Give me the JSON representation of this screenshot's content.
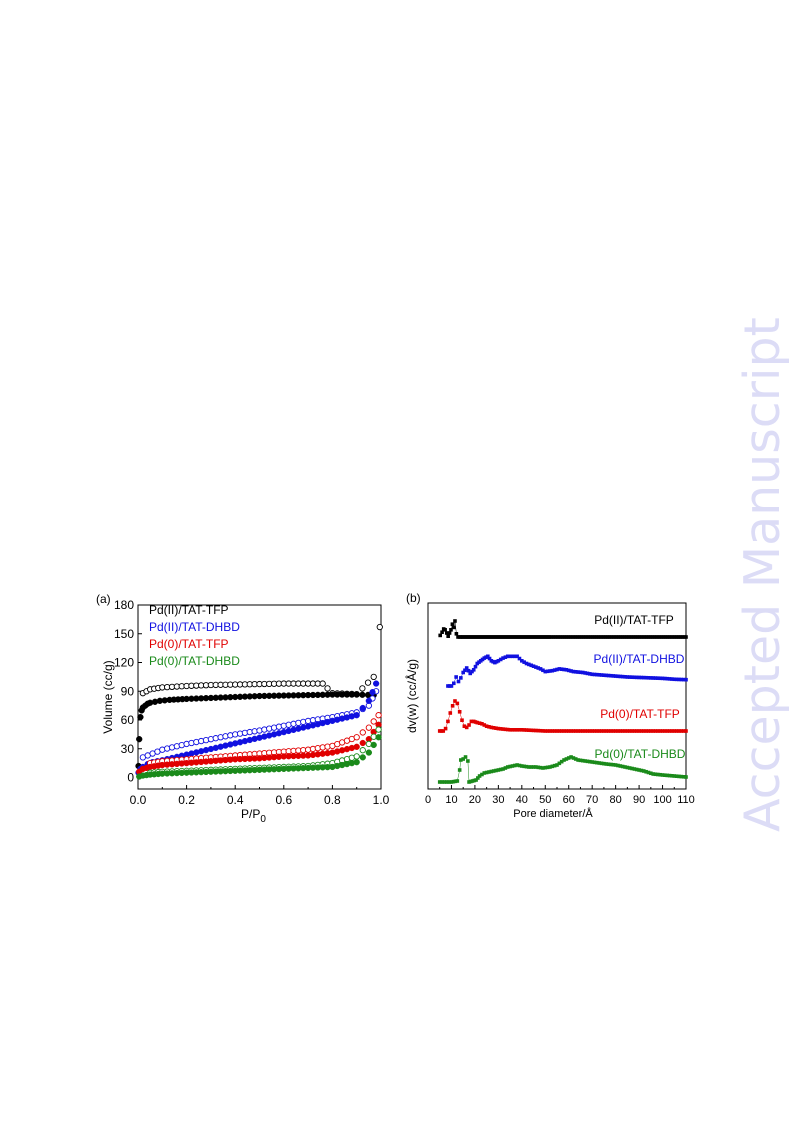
{
  "watermark": "Accepted Manuscript",
  "chart_data": [
    {
      "type": "scatter",
      "panel_label": "(a)",
      "xlabel": "P/P",
      "xlabel_sub": "0",
      "ylabel": "Volume (cc/g)",
      "xlim": [
        0.0,
        1.0
      ],
      "ylim": [
        -12,
        180
      ],
      "xticks": [
        "0.0",
        "0.2",
        "0.4",
        "0.6",
        "0.8",
        "1.0"
      ],
      "yticks": [
        "0",
        "30",
        "60",
        "90",
        "120",
        "150",
        "180"
      ],
      "legend": [
        "Pd(II)/TAT-TFP",
        "Pd(II)/TAT-DHBD",
        "Pd(0)/TAT-TFP",
        "Pd(0)/TAT-DHBD"
      ],
      "series": [
        {
          "name": "Pd(II)/TAT-TFP",
          "color": "#000000",
          "adsorption": [
            [
              0.002,
              12
            ],
            [
              0.005,
              40
            ],
            [
              0.01,
              63
            ],
            [
              0.015,
              70
            ],
            [
              0.02,
              73
            ],
            [
              0.03,
              75
            ],
            [
              0.04,
              77
            ],
            [
              0.05,
              78
            ],
            [
              0.07,
              79
            ],
            [
              0.09,
              80
            ],
            [
              0.13,
              81
            ],
            [
              0.2,
              82
            ],
            [
              0.3,
              83
            ],
            [
              0.4,
              84
            ],
            [
              0.5,
              85
            ],
            [
              0.6,
              85.5
            ],
            [
              0.7,
              86
            ],
            [
              0.8,
              86.5
            ],
            [
              0.9,
              86.5
            ],
            [
              0.97,
              86
            ]
          ],
          "desorption": [
            [
              0.02,
              88
            ],
            [
              0.05,
              92
            ],
            [
              0.1,
              94
            ],
            [
              0.2,
              95.5
            ],
            [
              0.3,
              96.5
            ],
            [
              0.4,
              97
            ],
            [
              0.5,
              97.5
            ],
            [
              0.6,
              98
            ],
            [
              0.7,
              98
            ],
            [
              0.76,
              98
            ],
            [
              0.8,
              88
            ],
            [
              0.9,
              87
            ],
            [
              0.97,
              105
            ],
            [
              0.995,
              157
            ]
          ]
        },
        {
          "name": "Pd(II)/TAT-DHBD",
          "color": "#1010e0",
          "adsorption": [
            [
              0.002,
              5
            ],
            [
              0.01,
              9
            ],
            [
              0.02,
              11
            ],
            [
              0.04,
              14
            ],
            [
              0.06,
              16
            ],
            [
              0.08,
              17
            ],
            [
              0.1,
              18
            ],
            [
              0.9,
              65
            ],
            [
              0.95,
              80
            ],
            [
              0.98,
              98
            ]
          ],
          "desorption": [
            [
              0.02,
              21
            ],
            [
              0.1,
              29
            ],
            [
              0.2,
              35
            ],
            [
              0.3,
              40
            ],
            [
              0.4,
              45
            ],
            [
              0.5,
              49
            ],
            [
              0.6,
              54
            ],
            [
              0.7,
              59
            ],
            [
              0.8,
              63
            ],
            [
              0.9,
              68
            ],
            [
              0.95,
              75
            ],
            [
              0.98,
              90
            ]
          ]
        },
        {
          "name": "Pd(0)/TAT-TFP",
          "color": "#e00000",
          "adsorption": [
            [
              0.005,
              6
            ],
            [
              0.02,
              9
            ],
            [
              0.05,
              11
            ],
            [
              0.1,
              13
            ],
            [
              0.2,
              15
            ],
            [
              0.3,
              17
            ],
            [
              0.4,
              19
            ],
            [
              0.5,
              20
            ],
            [
              0.6,
              22
            ],
            [
              0.7,
              23
            ],
            [
              0.8,
              26
            ],
            [
              0.9,
              32
            ],
            [
              0.95,
              40
            ],
            [
              0.99,
              55
            ]
          ],
          "desorption": [
            [
              0.05,
              15
            ],
            [
              0.1,
              17
            ],
            [
              0.2,
              19
            ],
            [
              0.3,
              21
            ],
            [
              0.4,
              23
            ],
            [
              0.5,
              25
            ],
            [
              0.6,
              27
            ],
            [
              0.7,
              29
            ],
            [
              0.8,
              33
            ],
            [
              0.9,
              42
            ],
            [
              0.95,
              52
            ],
            [
              0.99,
              65
            ]
          ]
        },
        {
          "name": "Pd(0)/TAT-DHBD",
          "color": "#1a8a1a",
          "adsorption": [
            [
              0.005,
              1
            ],
            [
              0.02,
              2
            ],
            [
              0.05,
              3
            ],
            [
              0.1,
              4
            ],
            [
              0.2,
              5
            ],
            [
              0.3,
              6
            ],
            [
              0.4,
              7
            ],
            [
              0.5,
              8
            ],
            [
              0.6,
              9
            ],
            [
              0.7,
              10
            ],
            [
              0.8,
              11
            ],
            [
              0.9,
              16
            ],
            [
              0.95,
              26
            ],
            [
              0.99,
              42
            ]
          ],
          "desorption": [
            [
              0.05,
              5
            ],
            [
              0.1,
              6
            ],
            [
              0.2,
              7
            ],
            [
              0.3,
              8
            ],
            [
              0.4,
              9
            ],
            [
              0.5,
              10
            ],
            [
              0.6,
              11
            ],
            [
              0.7,
              12
            ],
            [
              0.8,
              15
            ],
            [
              0.9,
              22
            ],
            [
              0.95,
              35
            ],
            [
              0.99,
              50
            ]
          ]
        }
      ]
    },
    {
      "type": "scatter",
      "panel_label": "(b)",
      "xlabel": "Pore diameter/Å",
      "ylabel": "dv(w) (cc/Å/g)",
      "xlim": [
        0,
        110
      ],
      "yticks_shown": false,
      "xticks": [
        "0",
        "10",
        "20",
        "30",
        "40",
        "50",
        "60",
        "70",
        "80",
        "90",
        "100",
        "110"
      ],
      "labels": [
        "Pd(II)/TAT-TFP",
        "Pd(II)/TAT-DHBD",
        "Pd(0)/TAT-TFP",
        "Pd(0)/TAT-DHBD"
      ],
      "series": [
        {
          "name": "Pd(II)/TAT-TFP",
          "color": "#000000",
          "points": [
            [
              5.2,
              0.2
            ],
            [
              6,
              0.6
            ],
            [
              6.7,
              1.0
            ],
            [
              7.3,
              0.9
            ],
            [
              8,
              0.5
            ],
            [
              8.6,
              0.1
            ],
            [
              9.8,
              0.9
            ],
            [
              10.4,
              1.6
            ],
            [
              11,
              1.2
            ],
            [
              11.5,
              2.0
            ],
            [
              12.1,
              0.4
            ],
            [
              12.8,
              0
            ],
            [
              15,
              0
            ],
            [
              17.5,
              0
            ],
            [
              18.6,
              0.15
            ],
            [
              20,
              0
            ],
            [
              110,
              0
            ]
          ]
        },
        {
          "name": "Pd(II)/TAT-DHBD",
          "color": "#1010e0",
          "points": [
            [
              8.5,
              0
            ],
            [
              10,
              0
            ],
            [
              11,
              0.3
            ],
            [
              12,
              1.0
            ],
            [
              13,
              0.5
            ],
            [
              14,
              0.9
            ],
            [
              15,
              1.5
            ],
            [
              16.5,
              2.0
            ],
            [
              18,
              1.4
            ],
            [
              19.5,
              1.8
            ],
            [
              21,
              2.5
            ],
            [
              22.5,
              2.8
            ],
            [
              24,
              3.1
            ],
            [
              25.5,
              3.3
            ],
            [
              27,
              2.8
            ],
            [
              28.5,
              2.6
            ],
            [
              30,
              2.8
            ],
            [
              32,
              3.1
            ],
            [
              34,
              3.3
            ],
            [
              36,
              3.3
            ],
            [
              38,
              3.3
            ],
            [
              40,
              2.8
            ],
            [
              42,
              2.5
            ],
            [
              44,
              2.3
            ],
            [
              46,
              2.1
            ],
            [
              48,
              1.9
            ],
            [
              50,
              1.6
            ],
            [
              53,
              1.7
            ],
            [
              56,
              1.9
            ],
            [
              59,
              1.8
            ],
            [
              62,
              1.6
            ],
            [
              66,
              1.5
            ],
            [
              70,
              1.3
            ],
            [
              75,
              1.2
            ],
            [
              80,
              1.1
            ],
            [
              85,
              1.0
            ],
            [
              90,
              0.95
            ],
            [
              95,
              0.9
            ],
            [
              100,
              0.85
            ],
            [
              105,
              0.75
            ],
            [
              110,
              0.7
            ]
          ]
        },
        {
          "name": "Pd(0)/TAT-TFP",
          "color": "#e00000",
          "points": [
            [
              5,
              0
            ],
            [
              6.5,
              0
            ],
            [
              7.5,
              0.2
            ],
            [
              8.5,
              0.8
            ],
            [
              9.5,
              1.5
            ],
            [
              10.5,
              2.1
            ],
            [
              11.5,
              2.5
            ],
            [
              12.5,
              2.3
            ],
            [
              13.5,
              1.6
            ],
            [
              14.5,
              0.9
            ],
            [
              15.5,
              0.4
            ],
            [
              16.5,
              0.3
            ],
            [
              17.5,
              0.5
            ],
            [
              18.5,
              0.8
            ],
            [
              19.5,
              0.8
            ],
            [
              21,
              0.7
            ],
            [
              23,
              0.6
            ],
            [
              25,
              0.4
            ],
            [
              27,
              0.3
            ],
            [
              30,
              0.2
            ],
            [
              35,
              0.1
            ],
            [
              40,
              0.1
            ],
            [
              45,
              0.05
            ],
            [
              50,
              0
            ],
            [
              110,
              0
            ]
          ]
        },
        {
          "name": "Pd(0)/TAT-DHBD",
          "color": "#1a8a1a",
          "points": [
            [
              5,
              0
            ],
            [
              10,
              0
            ],
            [
              12.5,
              0.1
            ],
            [
              13.5,
              1.2
            ],
            [
              14,
              2.2
            ],
            [
              15,
              2.3
            ],
            [
              16,
              2.5
            ],
            [
              17,
              2.1
            ],
            [
              17.5,
              0
            ],
            [
              19,
              0.1
            ],
            [
              20.5,
              0.2
            ],
            [
              22,
              0.6
            ],
            [
              24,
              0.9
            ],
            [
              26,
              1.0
            ],
            [
              28,
              1.1
            ],
            [
              30,
              1.2
            ],
            [
              32,
              1.3
            ],
            [
              34,
              1.5
            ],
            [
              36,
              1.6
            ],
            [
              38,
              1.7
            ],
            [
              40,
              1.6
            ],
            [
              43,
              1.5
            ],
            [
              46,
              1.5
            ],
            [
              49,
              1.4
            ],
            [
              52,
              1.5
            ],
            [
              55,
              1.7
            ],
            [
              58,
              2.2
            ],
            [
              61,
              2.5
            ],
            [
              64,
              2.2
            ],
            [
              67,
              2.1
            ],
            [
              70,
              2.0
            ],
            [
              73,
              1.9
            ],
            [
              76,
              1.8
            ],
            [
              80,
              1.7
            ],
            [
              84,
              1.5
            ],
            [
              88,
              1.3
            ],
            [
              92,
              1.1
            ],
            [
              96,
              0.8
            ],
            [
              100,
              0.7
            ],
            [
              105,
              0.6
            ],
            [
              110,
              0.5
            ]
          ]
        }
      ]
    }
  ]
}
